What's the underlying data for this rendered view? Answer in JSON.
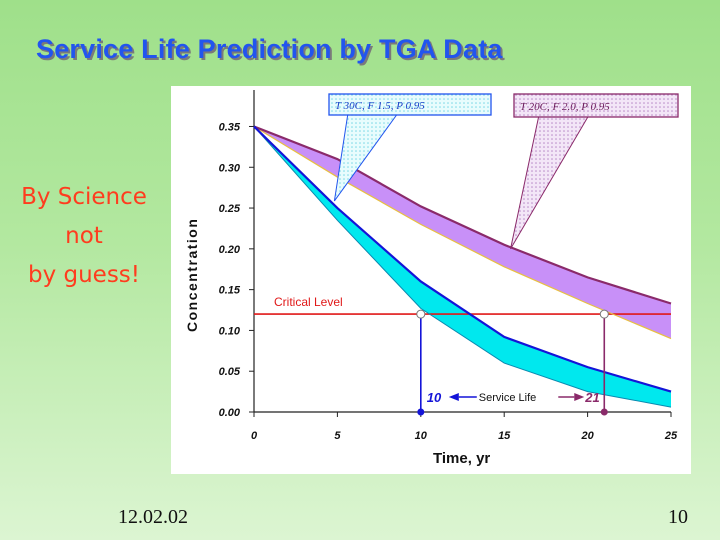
{
  "slide": {
    "title": "Service Life Prediction by TGA Data",
    "tagline": [
      "By Science",
      "not",
      "by guess!"
    ],
    "date": "12.02.02",
    "page_number": "10"
  },
  "colors": {
    "title": "#2255ee",
    "tagline": "#ff3c1e",
    "band_30c": "#00e8ee",
    "band_20c": "#c890f8",
    "critical_line": "#e01818",
    "curve_30c": "#1414d8",
    "curve_20c": "#8a2a6a"
  },
  "chart_data": {
    "type": "line",
    "xlabel": "Time, yr",
    "ylabel": "Concentration",
    "xlim": [
      0,
      25
    ],
    "ylim": [
      0,
      0.38
    ],
    "x_ticks": [
      "0",
      "5",
      "10",
      "15",
      "20",
      "25"
    ],
    "y_ticks": [
      "0.00",
      "0.05",
      "0.10",
      "0.15",
      "0.20",
      "0.25",
      "0.30",
      "0.35"
    ],
    "series": [
      {
        "name": "30C upper",
        "x": [
          0,
          5,
          10,
          15,
          20,
          25
        ],
        "values": [
          0.35,
          0.25,
          0.16,
          0.092,
          0.055,
          0.025
        ]
      },
      {
        "name": "30C lower",
        "x": [
          0,
          5,
          10,
          15,
          20,
          25
        ],
        "values": [
          0.35,
          0.235,
          0.127,
          0.06,
          0.025,
          0.006
        ]
      },
      {
        "name": "20C upper",
        "x": [
          0,
          5,
          10,
          15,
          20,
          25
        ],
        "values": [
          0.35,
          0.31,
          0.252,
          0.205,
          0.165,
          0.133
        ]
      },
      {
        "name": "20C lower",
        "x": [
          0,
          5,
          10,
          15,
          20,
          25
        ],
        "values": [
          0.35,
          0.288,
          0.23,
          0.178,
          0.133,
          0.09
        ]
      }
    ],
    "critical_level": {
      "label": "Critical Level",
      "value": 0.12
    },
    "service_life": {
      "label": "Service Life",
      "t_30c": 10,
      "t_20c": 21,
      "label_30c": "10",
      "label_20c": "21"
    },
    "callouts": [
      {
        "label": "T   30C,  F   1.5,  P   0.95",
        "anchor_x": 5,
        "anchor_y": 0.255
      },
      {
        "label": "T   20C,  F   2.0,  P   0.95",
        "anchor_x": 15.5,
        "anchor_y": 0.2
      }
    ]
  }
}
